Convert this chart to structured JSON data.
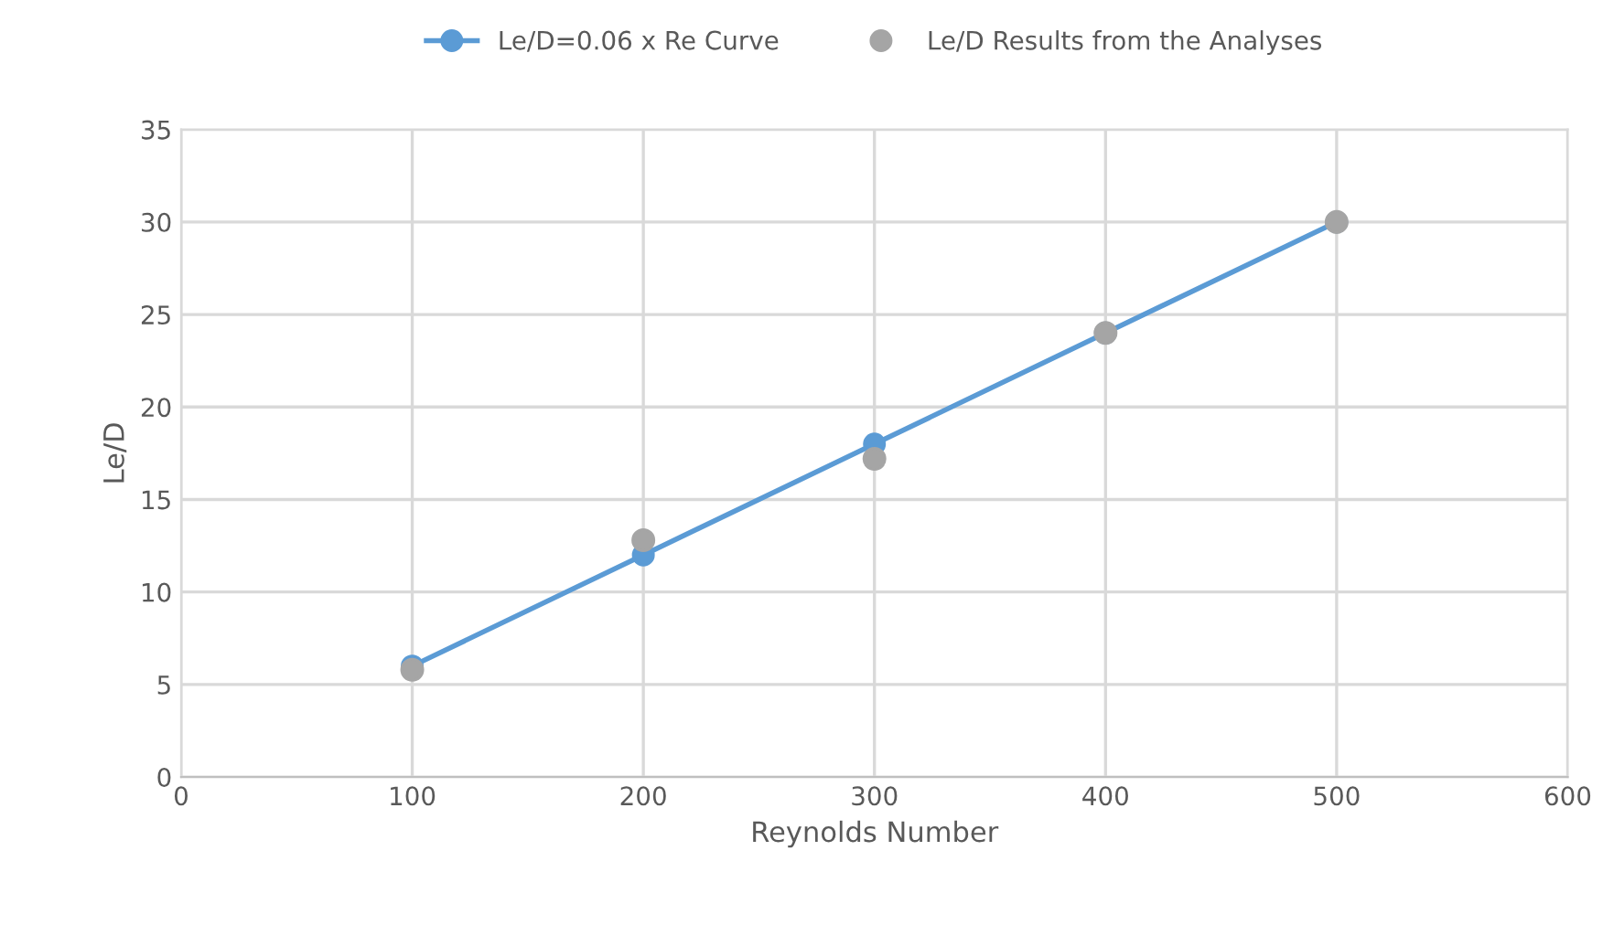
{
  "chart_data": {
    "type": "line",
    "xlabel": "Reynolds Number",
    "ylabel": "Le/D",
    "xlim": [
      0,
      600
    ],
    "xticks": [
      0,
      100,
      200,
      300,
      400,
      500,
      600
    ],
    "ylim": [
      0,
      35
    ],
    "yticks": [
      0,
      5,
      10,
      15,
      20,
      25,
      30,
      35
    ],
    "grid": true,
    "legend": "top",
    "marker": "circle",
    "series": [
      {
        "name": "Le/D=0.06 x Re Curve",
        "color": "#5b9bd5",
        "x": [
          100,
          200,
          300,
          400,
          500
        ],
        "values": [
          6,
          12,
          18,
          24,
          30
        ]
      },
      {
        "name": "Le/D Results from the Analyses",
        "color": "#a5a5a5",
        "type": "scatter",
        "x": [
          100,
          200,
          300,
          400,
          500
        ],
        "values": [
          5.8,
          12.8,
          17.2,
          24,
          30
        ]
      }
    ]
  }
}
